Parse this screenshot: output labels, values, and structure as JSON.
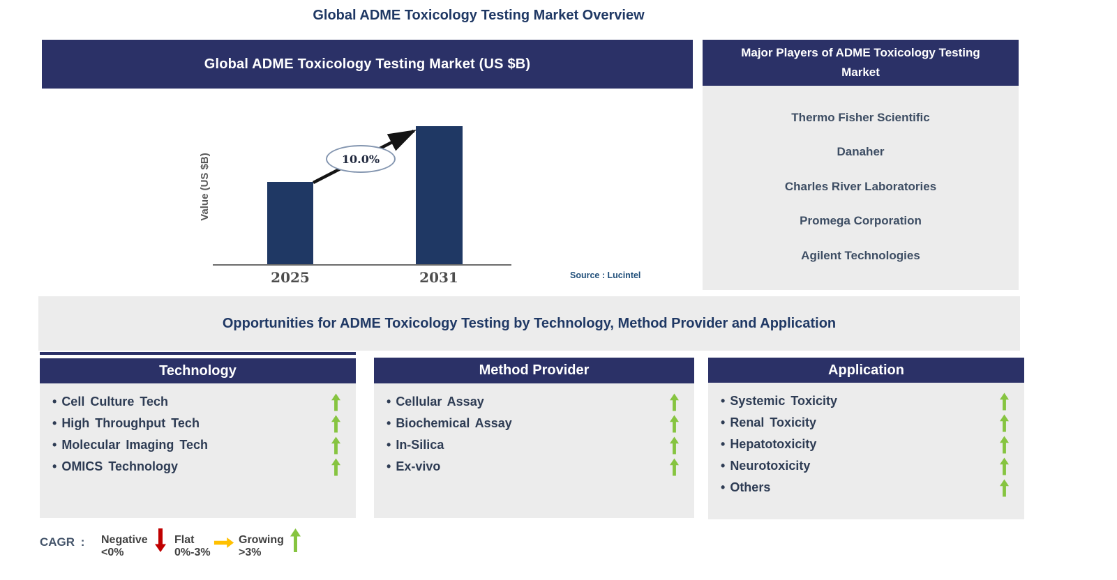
{
  "page_title": "Global ADME Toxicology Testing Market Overview",
  "market_panel": {
    "title": "Global ADME Toxicology Testing Market (US $B)",
    "source": "Source : Lucintel"
  },
  "chart_data": {
    "type": "bar",
    "title": "Global ADME Toxicology Testing Market (US $B)",
    "categories": [
      "2025",
      "2031"
    ],
    "values": [
      0.6,
      1.0
    ],
    "values_note": "no numeric axis or data labels shown; heights relative, 2031 bar normalized to 1.0",
    "annotation": "10.0%",
    "ylabel": "Value (US $B)",
    "xlabel": "",
    "ylim": [
      0,
      1.1
    ],
    "grid": false,
    "legend_position": "none",
    "bar_color": "#1F3864"
  },
  "major_players": {
    "title": "Major Players of ADME Toxicology Testing Market",
    "companies": [
      "Thermo Fisher Scientific",
      "Danaher",
      "Charles River Laboratories",
      "Promega Corporation",
      "Agilent Technologies"
    ]
  },
  "opportunities": {
    "title": "Opportunities for ADME Toxicology Testing by Technology, Method Provider and Application",
    "columns": [
      {
        "title": "Technology",
        "items": [
          "Cell Culture Tech",
          "High Throughput Tech",
          "Molecular Imaging Tech",
          "OMICS Technology"
        ]
      },
      {
        "title": "Method Provider",
        "items": [
          "Cellular Assay",
          "Biochemical Assay",
          "In-Silica",
          "Ex-vivo"
        ]
      },
      {
        "title": "Application",
        "items": [
          "Systemic Toxicity",
          "Renal Toxicity",
          "Hepatotoxicity",
          "Neurotoxicity",
          "Others"
        ]
      }
    ]
  },
  "legend": {
    "label": "CAGR :",
    "entries": [
      {
        "name": "Negative",
        "range": "<0%",
        "icon": "down-arrow-icon",
        "color": "#C00000"
      },
      {
        "name": "Flat",
        "range": "0%-3%",
        "icon": "right-arrow-icon",
        "color": "#FFC000"
      },
      {
        "name": "Growing",
        "range": ">3%",
        "icon": "up-arrow-icon",
        "color": "#86C440"
      }
    ]
  },
  "colors": {
    "navy": "#2B3167",
    "bar_navy": "#1F3864",
    "panel_gray": "#ECECEC",
    "title_blue": "#1F3864",
    "item_text": "#2E3C54",
    "company_text": "#3D4D63",
    "growth_green": "#86C440",
    "negative_red": "#C00000",
    "flat_orange": "#FFC000",
    "chart_arrow_black": "#141414"
  }
}
